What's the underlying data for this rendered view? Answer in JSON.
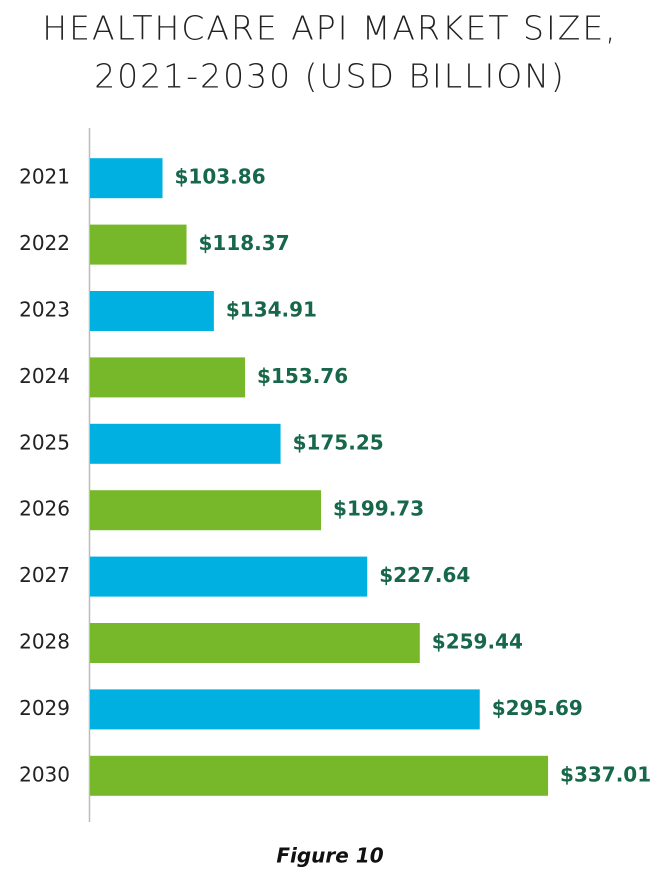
{
  "chart_data": {
    "type": "bar",
    "orientation": "horizontal",
    "title": [
      "HEALTHCARE API MARKET SIZE,",
      "2021-2030 (USD BILLION)"
    ],
    "categories": [
      "2021",
      "2022",
      "2023",
      "2024",
      "2025",
      "2026",
      "2027",
      "2028",
      "2029",
      "2030"
    ],
    "values": [
      103.86,
      118.37,
      134.91,
      153.76,
      175.25,
      199.73,
      227.64,
      259.44,
      295.69,
      337.01
    ],
    "value_labels": [
      "$103.86",
      "$118.37",
      "$134.91",
      "$153.76",
      "$175.25",
      "$199.73",
      "$227.64",
      "$259.44",
      "$295.69",
      "$337.01"
    ],
    "colors": [
      "#00b0e0",
      "#76b82a",
      "#00b0e0",
      "#76b82a",
      "#00b0e0",
      "#76b82a",
      "#00b0e0",
      "#76b82a",
      "#00b0e0",
      "#76b82a"
    ],
    "label_color": "#17674a",
    "xlim": [
      60,
      340
    ],
    "caption": "Figure 10"
  }
}
